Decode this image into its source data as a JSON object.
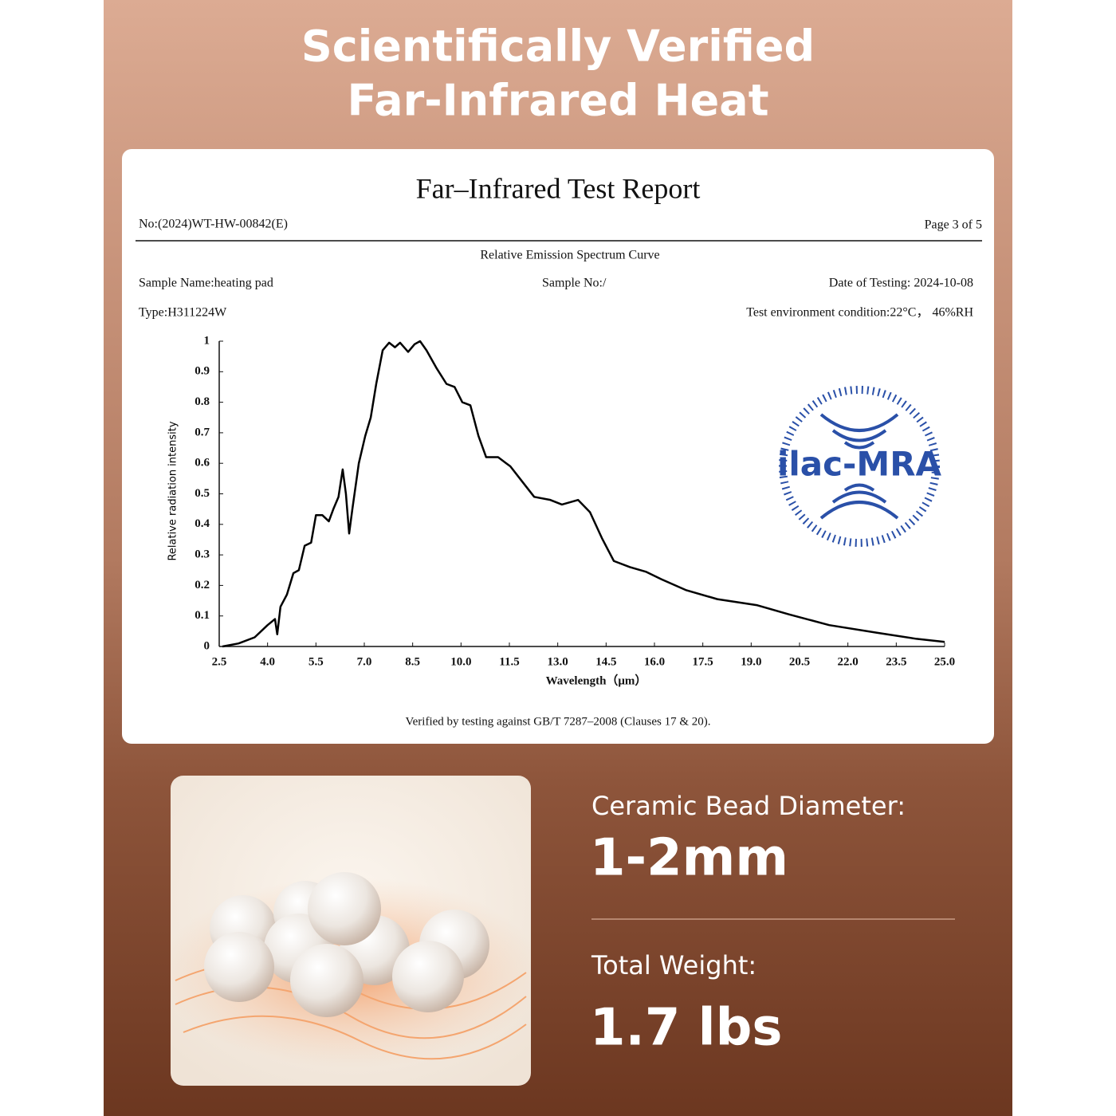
{
  "header": {
    "title_line1": "Scientifically Verified",
    "title_line2": "Far-Infrared Heat"
  },
  "report": {
    "title": "Far–Infrared Test Report",
    "number": "No:(2024)WT-HW-00842(E)",
    "page": "Page  3  of  5",
    "subtitle": "Relative Emission Spectrum Curve",
    "sample_name": "Sample Name:heating pad",
    "sample_no": "Sample No:/",
    "date": "Date of  Testing: 2024-10-08",
    "type": "Type:H311224W",
    "environment": "Test environment condition:22°C， 46%RH",
    "logo": "ilac-MRA",
    "footer": "Verified by testing against GB/T 7287–2008 (Clauses 17 & 20)."
  },
  "chart_data": {
    "type": "line",
    "ylabel": "Relative radiation intensity",
    "xlabel": "Wavelength（μm）",
    "color": "#000000",
    "x": [
      2.6,
      3.1,
      3.6,
      4.0,
      4.23,
      4.3,
      4.4,
      4.6,
      4.8,
      4.97,
      5.15,
      5.35,
      5.5,
      5.7,
      5.9,
      6.04,
      6.2,
      6.33,
      6.43,
      6.53,
      6.63,
      6.83,
      7.03,
      7.2,
      7.37,
      7.57,
      7.77,
      7.95,
      8.11,
      8.36,
      8.56,
      8.73,
      8.93,
      9.25,
      9.55,
      9.8,
      10.04,
      10.29,
      10.54,
      10.78,
      11.15,
      11.53,
      11.9,
      12.27,
      12.77,
      13.13,
      13.63,
      14.0,
      14.37,
      14.74,
      15.24,
      15.73,
      16.22,
      16.97,
      17.95,
      19.19,
      20.18,
      21.42,
      22.9,
      24.13,
      25.0
    ],
    "values": [
      0,
      0.01,
      0.03,
      0.07,
      0.09,
      0.04,
      0.13,
      0.17,
      0.24,
      0.25,
      0.33,
      0.34,
      0.43,
      0.43,
      0.41,
      0.45,
      0.49,
      0.58,
      0.5,
      0.37,
      0.45,
      0.6,
      0.69,
      0.75,
      0.86,
      0.97,
      0.995,
      0.98,
      0.995,
      0.965,
      0.99,
      1.0,
      0.97,
      0.91,
      0.86,
      0.85,
      0.8,
      0.79,
      0.69,
      0.62,
      0.62,
      0.59,
      0.54,
      0.49,
      0.48,
      0.465,
      0.48,
      0.44,
      0.355,
      0.28,
      0.26,
      0.245,
      0.22,
      0.185,
      0.155,
      0.135,
      0.105,
      0.07,
      0.045,
      0.025,
      0.015
    ],
    "xlim": [
      2.5,
      25.0
    ],
    "ylim": [
      0,
      1
    ],
    "xticks": [
      2.5,
      {
        "value": 4,
        "label": "4.0"
      },
      5.5,
      {
        "value": 7,
        "label": "7.0"
      },
      8.5,
      {
        "value": 10,
        "label": "10.0"
      },
      11.5,
      {
        "value": 13,
        "label": "13.0"
      },
      14.5,
      {
        "value": 16,
        "label": "16.0"
      },
      17.5,
      {
        "value": 19,
        "label": "19.0"
      },
      20.5,
      {
        "value": 22,
        "label": "22.0"
      },
      23.5,
      {
        "value": 25,
        "label": "25.0"
      }
    ],
    "yticks": [
      0,
      0.1,
      0.2,
      0.3,
      0.4,
      0.5,
      0.6,
      0.7,
      0.8,
      0.9,
      1
    ]
  },
  "specs": {
    "diameter_label": "Ceramic Bead Diameter:",
    "diameter_value": "1-2mm",
    "weight_label": "Total Weight:",
    "weight_value": "1.7 lbs"
  }
}
